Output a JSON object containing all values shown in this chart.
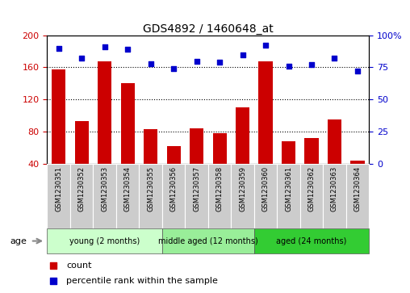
{
  "title": "GDS4892 / 1460648_at",
  "samples": [
    "GSM1230351",
    "GSM1230352",
    "GSM1230353",
    "GSM1230354",
    "GSM1230355",
    "GSM1230356",
    "GSM1230357",
    "GSM1230358",
    "GSM1230359",
    "GSM1230360",
    "GSM1230361",
    "GSM1230362",
    "GSM1230363",
    "GSM1230364"
  ],
  "counts": [
    157,
    93,
    168,
    140,
    83,
    62,
    84,
    78,
    110,
    168,
    68,
    72,
    95,
    44
  ],
  "percentile_ranks": [
    90,
    82,
    91,
    89,
    78,
    74,
    80,
    79,
    85,
    92,
    76,
    77,
    82,
    72
  ],
  "groups": [
    {
      "label": "young (2 months)",
      "start": 0,
      "end": 5,
      "color": "#ccffcc"
    },
    {
      "label": "middle aged (12 months)",
      "start": 5,
      "end": 9,
      "color": "#99ee99"
    },
    {
      "label": "aged (24 months)",
      "start": 9,
      "end": 14,
      "color": "#33cc33"
    }
  ],
  "ylim_left": [
    40,
    200
  ],
  "ylim_right": [
    0,
    100
  ],
  "bar_color": "#cc0000",
  "dot_color": "#0000cc",
  "tick_color_left": "#cc0000",
  "tick_color_right": "#0000cc",
  "yticks_left": [
    40,
    80,
    120,
    160,
    200
  ],
  "yticks_right": [
    0,
    25,
    50,
    75,
    100
  ],
  "gridlines_at": [
    80,
    120,
    160
  ],
  "tick_label_bg": "#cccccc",
  "group_border_color": "#333333"
}
